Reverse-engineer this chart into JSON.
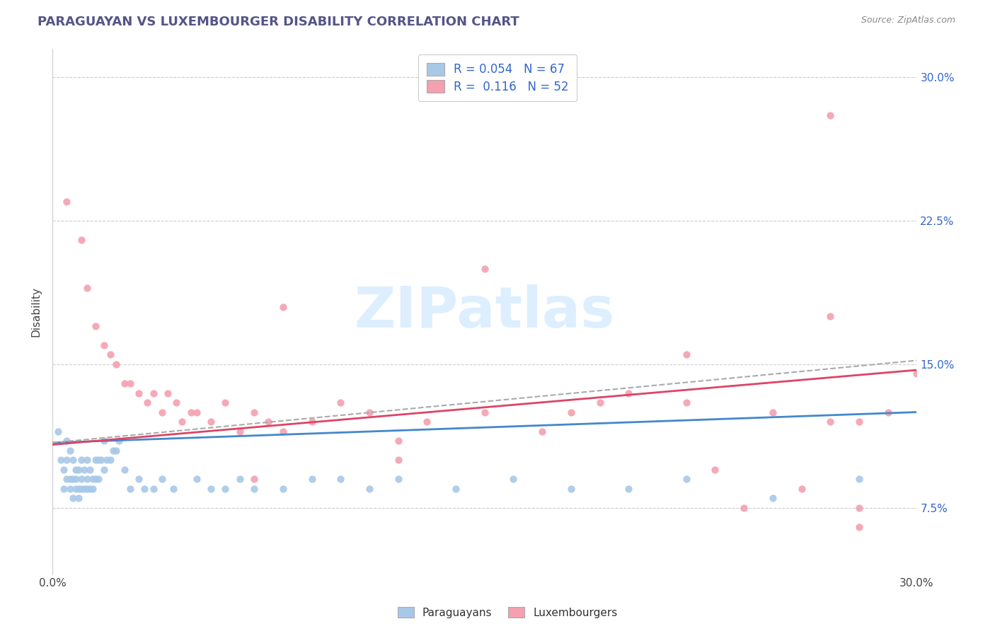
{
  "title": "PARAGUAYAN VS LUXEMBOURGER DISABILITY CORRELATION CHART",
  "source": "Source: ZipAtlas.com",
  "ylabel": "Disability",
  "xlim": [
    0.0,
    0.3
  ],
  "ylim": [
    0.04,
    0.315
  ],
  "yticks": [
    0.075,
    0.15,
    0.225,
    0.3
  ],
  "ytick_labels": [
    "7.5%",
    "15.0%",
    "22.5%",
    "30.0%"
  ],
  "xticks": [
    0.0,
    0.3
  ],
  "xtick_labels": [
    "0.0%",
    "30.0%"
  ],
  "r_paraguayan": 0.054,
  "n_paraguayan": 67,
  "r_luxembourger": 0.116,
  "n_luxembourger": 52,
  "color_paraguayan": "#a8c8e8",
  "color_luxembourger": "#f4a0b0",
  "color_blue": "#3366cc",
  "line_color_paraguayan": "#4488cc",
  "line_color_luxembourger": "#dd4466",
  "line_color_dashed": "#aaaaaa",
  "background_color": "#ffffff",
  "watermark_color": "#ddeeff",
  "par_x": [
    0.002,
    0.003,
    0.004,
    0.004,
    0.005,
    0.005,
    0.005,
    0.006,
    0.006,
    0.006,
    0.007,
    0.007,
    0.007,
    0.008,
    0.008,
    0.008,
    0.009,
    0.009,
    0.009,
    0.01,
    0.01,
    0.01,
    0.011,
    0.011,
    0.012,
    0.012,
    0.012,
    0.013,
    0.013,
    0.014,
    0.014,
    0.015,
    0.015,
    0.016,
    0.016,
    0.017,
    0.018,
    0.018,
    0.019,
    0.02,
    0.021,
    0.022,
    0.023,
    0.025,
    0.027,
    0.03,
    0.032,
    0.035,
    0.038,
    0.042,
    0.05,
    0.055,
    0.06,
    0.065,
    0.07,
    0.08,
    0.09,
    0.1,
    0.11,
    0.12,
    0.14,
    0.16,
    0.18,
    0.2,
    0.22,
    0.25,
    0.28
  ],
  "par_y": [
    0.115,
    0.1,
    0.095,
    0.085,
    0.09,
    0.1,
    0.11,
    0.085,
    0.09,
    0.105,
    0.08,
    0.09,
    0.1,
    0.085,
    0.09,
    0.095,
    0.08,
    0.085,
    0.095,
    0.085,
    0.09,
    0.1,
    0.085,
    0.095,
    0.085,
    0.09,
    0.1,
    0.085,
    0.095,
    0.085,
    0.09,
    0.09,
    0.1,
    0.09,
    0.1,
    0.1,
    0.095,
    0.11,
    0.1,
    0.1,
    0.105,
    0.105,
    0.11,
    0.095,
    0.085,
    0.09,
    0.085,
    0.085,
    0.09,
    0.085,
    0.09,
    0.085,
    0.085,
    0.09,
    0.085,
    0.085,
    0.09,
    0.09,
    0.085,
    0.09,
    0.085,
    0.09,
    0.085,
    0.085,
    0.09,
    0.08,
    0.09
  ],
  "lux_x": [
    0.005,
    0.01,
    0.012,
    0.015,
    0.018,
    0.02,
    0.022,
    0.025,
    0.027,
    0.03,
    0.033,
    0.035,
    0.038,
    0.04,
    0.043,
    0.045,
    0.048,
    0.05,
    0.055,
    0.06,
    0.065,
    0.07,
    0.075,
    0.08,
    0.09,
    0.1,
    0.11,
    0.12,
    0.13,
    0.15,
    0.17,
    0.19,
    0.2,
    0.22,
    0.25,
    0.27,
    0.28,
    0.29,
    0.3,
    0.24,
    0.26,
    0.28,
    0.08,
    0.15,
    0.22,
    0.27,
    0.07,
    0.12,
    0.18,
    0.23,
    0.28,
    0.27
  ],
  "lux_y": [
    0.235,
    0.215,
    0.19,
    0.17,
    0.16,
    0.155,
    0.15,
    0.14,
    0.14,
    0.135,
    0.13,
    0.135,
    0.125,
    0.135,
    0.13,
    0.12,
    0.125,
    0.125,
    0.12,
    0.13,
    0.115,
    0.125,
    0.12,
    0.115,
    0.12,
    0.13,
    0.125,
    0.11,
    0.12,
    0.125,
    0.115,
    0.13,
    0.135,
    0.13,
    0.125,
    0.12,
    0.12,
    0.125,
    0.145,
    0.075,
    0.085,
    0.065,
    0.18,
    0.2,
    0.155,
    0.175,
    0.09,
    0.1,
    0.125,
    0.095,
    0.075,
    0.28
  ]
}
